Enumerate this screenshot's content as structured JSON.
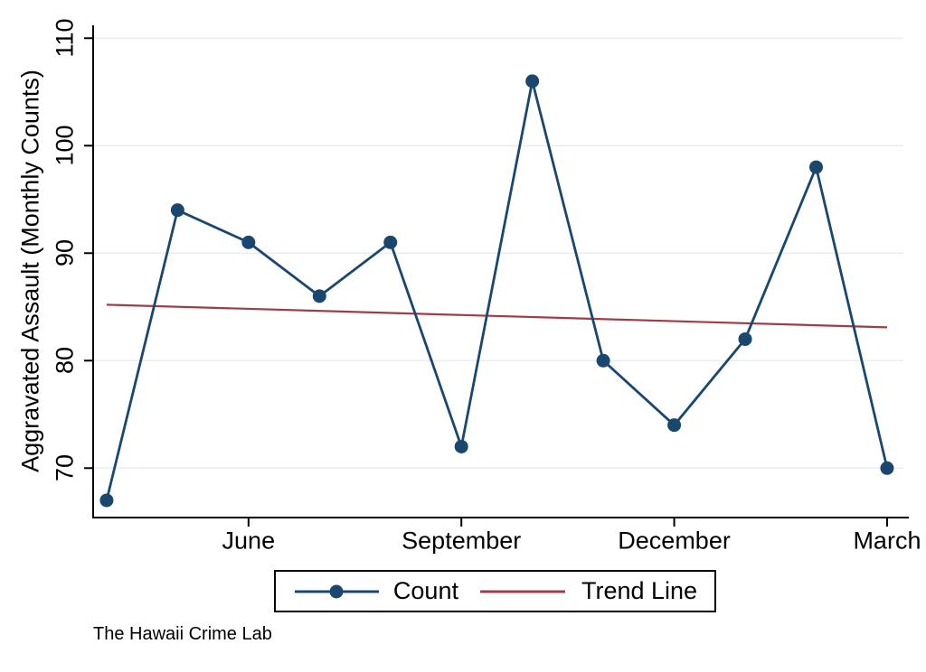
{
  "footer_note": "The Hawaii Crime Lab",
  "chart_data": {
    "type": "line",
    "title": "",
    "xlabel": "",
    "ylabel": "Aggravated Assault (Monthly Counts)",
    "x": [
      1,
      2,
      3,
      4,
      5,
      6,
      7,
      8,
      9,
      10,
      11,
      12
    ],
    "x_ticks": [
      {
        "x": 3,
        "label": "June"
      },
      {
        "x": 6,
        "label": "September"
      },
      {
        "x": 9,
        "label": "December"
      },
      {
        "x": 12,
        "label": "March"
      }
    ],
    "yticks": [
      70,
      80,
      90,
      100,
      110
    ],
    "ylim": [
      65.4,
      111.2
    ],
    "xlim": [
      0.81,
      12.23
    ],
    "grid": "horizontal",
    "grid_color": "#e8eef1",
    "axis_color": "#000000",
    "legend_position": "bottom-center",
    "series": [
      {
        "name": "Count",
        "type": "line",
        "color": "#1a476f",
        "marker": "circle",
        "values": [
          67,
          94,
          91,
          86,
          91,
          72,
          106,
          80,
          74,
          82,
          98,
          70
        ]
      },
      {
        "name": "Trend Line",
        "type": "line",
        "color": "#a03c46",
        "marker": "none",
        "endpoint_values": [
          85.2,
          83.1
        ]
      }
    ]
  }
}
